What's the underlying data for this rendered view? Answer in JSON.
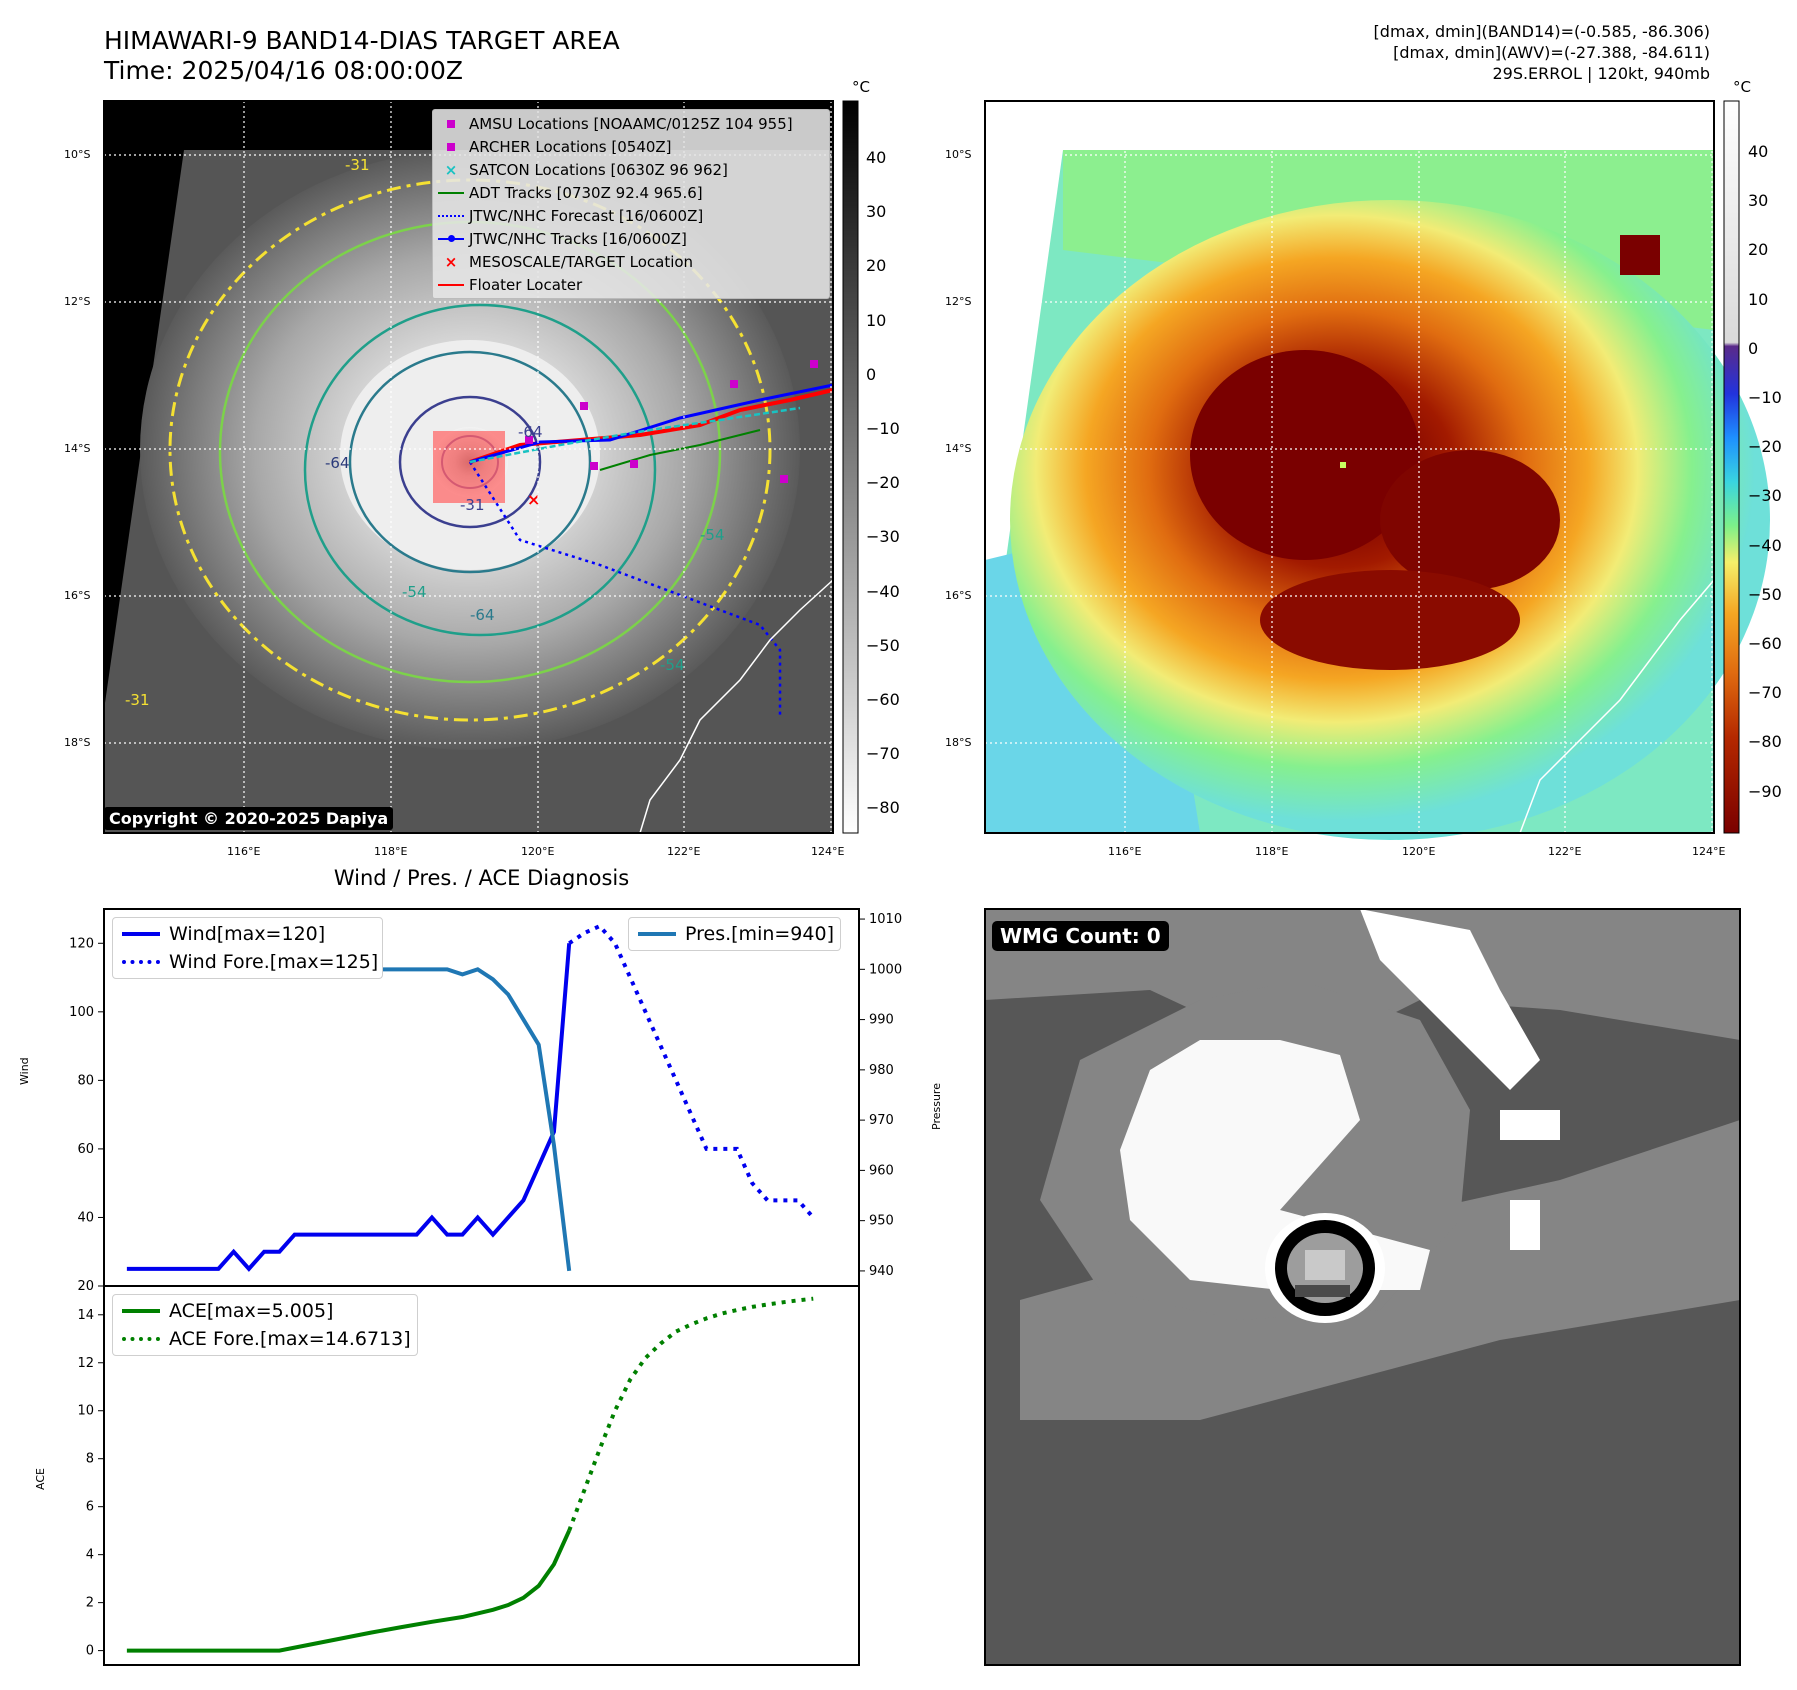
{
  "header": {
    "title_line1": "HIMAWARI-9 BAND14-DIAS TARGET AREA",
    "title_line2": "Time: 2025/04/16 08:00:00Z",
    "info_line1": "[dmax, dmin](BAND14)=(-0.585, -86.306)",
    "info_line2": "[dmax, dmin](AWV)=(-27.388, -84.611)",
    "info_line3": "29S.ERROL | 120kt, 940mb"
  },
  "map_axes": {
    "lat_labels": [
      "10°S",
      "12°S",
      "14°S",
      "16°S",
      "18°S"
    ],
    "lon_labels": [
      "116°E",
      "118°E",
      "120°E",
      "122°E",
      "124°E"
    ]
  },
  "map_left": {
    "copyright": "Copyright © 2020-2025 Dapiya",
    "colorbar_unit": "°C",
    "colorbar_ticks": [
      "40",
      "30",
      "20",
      "10",
      "0",
      "−10",
      "−20",
      "−30",
      "−40",
      "−50",
      "−60",
      "−70",
      "−80"
    ],
    "contour_labels": [
      "-64",
      "-64",
      "-54",
      "-54",
      "-64",
      "-31",
      "-31",
      "-54",
      "-31"
    ],
    "legend": [
      {
        "label": "AMSU Locations [NOAAMC/0125Z 104 955]",
        "symbol": "square",
        "color": "#cc00cc"
      },
      {
        "label": "ARCHER Locations [0540Z]",
        "symbol": "square",
        "color": "#cc00cc"
      },
      {
        "label": "SATCON Locations [0630Z 96 962]",
        "symbol": "x",
        "color": "#19c2c2"
      },
      {
        "label": "ADT Tracks [0730Z 92.4 965.6]",
        "symbol": "line",
        "color": "#008000"
      },
      {
        "label": "JTWC/NHC Forecast [16/0600Z]",
        "symbol": "dotted",
        "color": "#0000ff"
      },
      {
        "label": "JTWC/NHC Tracks [16/0600Z]",
        "symbol": "line-dot",
        "color": "#0000ff"
      },
      {
        "label": "MESOSCALE/TARGET Location",
        "symbol": "x",
        "color": "#ff0000"
      },
      {
        "label": "Floater Locater",
        "symbol": "line",
        "color": "#ff0000"
      }
    ]
  },
  "map_right": {
    "colorbar_unit": "°C",
    "colorbar_ticks": [
      "40",
      "30",
      "20",
      "10",
      "0",
      "−10",
      "−20",
      "−30",
      "−40",
      "−50",
      "−60",
      "−70",
      "−80",
      "−90"
    ]
  },
  "wmg_panel": {
    "count_label": "WMG Count: 0"
  },
  "chart_data": [
    {
      "type": "line",
      "title": "Wind / Pres. / ACE Diagnosis",
      "ylabel": "Wind",
      "y2label": "Pressure",
      "ylim": [
        20,
        130
      ],
      "y2lim": [
        937,
        1012
      ],
      "yticks": [
        20,
        40,
        60,
        80,
        100,
        120
      ],
      "y2ticks": [
        940,
        950,
        960,
        970,
        980,
        990,
        1000,
        1010
      ],
      "legend_left": [
        "Wind[max=120]",
        "Wind Fore.[max=125]"
      ],
      "legend_right": [
        "Pres.[min=940]"
      ],
      "series": [
        {
          "name": "Wind[max=120]",
          "axis": "left",
          "style": "solid",
          "color": "#0000ee",
          "x": [
            0,
            1,
            2,
            3,
            4,
            5,
            6,
            7,
            8,
            9,
            10,
            11,
            12,
            13,
            14,
            15,
            16,
            17,
            18,
            19,
            20,
            21,
            22,
            23,
            24,
            25,
            26,
            27,
            28,
            29
          ],
          "y": [
            25,
            25,
            25,
            25,
            25,
            25,
            25,
            30,
            25,
            30,
            30,
            35,
            35,
            35,
            35,
            35,
            35,
            35,
            35,
            35,
            40,
            35,
            35,
            40,
            35,
            40,
            45,
            55,
            65,
            120
          ]
        },
        {
          "name": "Wind Fore.[max=125]",
          "axis": "left",
          "style": "dotted",
          "color": "#0000ee",
          "x": [
            29,
            30,
            31,
            32,
            33,
            34,
            35,
            36,
            37,
            38,
            39,
            40,
            41,
            42,
            43,
            44,
            45
          ],
          "y": [
            120,
            123,
            125,
            120,
            110,
            100,
            90,
            80,
            70,
            60,
            60,
            60,
            50,
            45,
            45,
            45,
            40
          ]
        },
        {
          "name": "Pres.[min=940]",
          "axis": "right",
          "style": "solid",
          "color": "#1f77b4",
          "x": [
            0,
            1,
            2,
            3,
            4,
            5,
            6,
            7,
            8,
            9,
            10,
            11,
            12,
            13,
            14,
            15,
            16,
            17,
            18,
            19,
            20,
            21,
            22,
            23,
            24,
            25,
            26,
            27,
            28,
            29
          ],
          "y": [
            1007,
            1005,
            1004,
            1004,
            1002,
            1001,
            1001,
            1001,
            1000,
            1000,
            1000,
            1000,
            1000,
            1000,
            1000,
            1000,
            1000,
            1000,
            1000,
            1000,
            1000,
            1000,
            999,
            1000,
            998,
            995,
            990,
            985,
            965,
            940
          ]
        }
      ],
      "x_range": [
        -1.5,
        48
      ]
    },
    {
      "type": "line",
      "ylabel": "ACE",
      "ylim": [
        -0.6,
        15.2
      ],
      "yticks": [
        0,
        2,
        4,
        6,
        8,
        10,
        12,
        14
      ],
      "legend": [
        "ACE[max=5.005]",
        "ACE Fore.[max=14.6713]"
      ],
      "series": [
        {
          "name": "ACE[max=5.005]",
          "style": "solid",
          "color": "#008000",
          "x": [
            0,
            2,
            4,
            6,
            8,
            10,
            12,
            14,
            16,
            18,
            20,
            22,
            23,
            24,
            25,
            26,
            27,
            28,
            29
          ],
          "y": [
            0,
            0,
            0,
            0,
            0,
            0,
            0.25,
            0.5,
            0.75,
            0.98,
            1.2,
            1.4,
            1.55,
            1.7,
            1.9,
            2.2,
            2.7,
            3.6,
            5.005
          ]
        },
        {
          "name": "ACE Fore.[max=14.6713]",
          "style": "dotted",
          "color": "#008000",
          "x": [
            29,
            30,
            31,
            32,
            33,
            34,
            35,
            36,
            37,
            38,
            39,
            40,
            41,
            42,
            43,
            44,
            45
          ],
          "y": [
            5.005,
            6.7,
            8.4,
            10,
            11.3,
            12.2,
            12.8,
            13.3,
            13.6,
            13.85,
            14.05,
            14.2,
            14.33,
            14.43,
            14.52,
            14.6,
            14.6713
          ]
        }
      ],
      "x_range": [
        -1.5,
        48
      ]
    }
  ]
}
